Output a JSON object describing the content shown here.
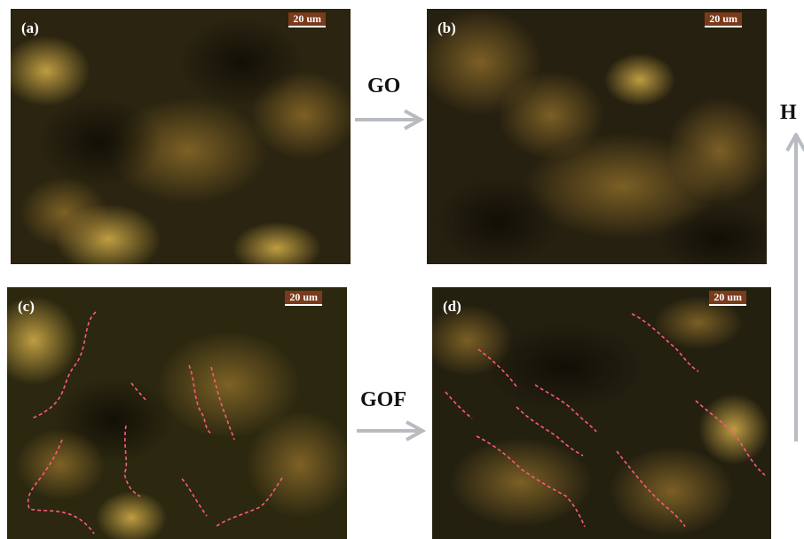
{
  "panels": {
    "a": {
      "label": "(a)",
      "scale": "20 um"
    },
    "b": {
      "label": "(b)",
      "scale": "20 um"
    },
    "c": {
      "label": "(c)",
      "scale": "20 um"
    },
    "d": {
      "label": "(d)",
      "scale": "20 um"
    }
  },
  "arrows": {
    "go_label": "GO",
    "gof_label": "GOF",
    "field_label": "H"
  },
  "colors": {
    "background": "#1e1a08",
    "highlight": "#c89a3a",
    "dashed_line": "#ff5a7a",
    "arrow": "#b8bcc0"
  }
}
